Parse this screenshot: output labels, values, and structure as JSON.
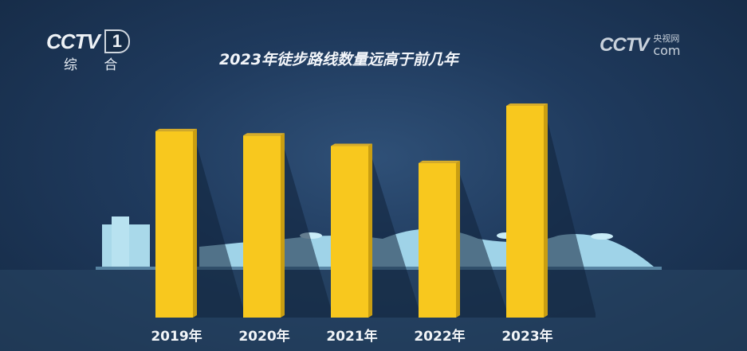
{
  "logo_left": {
    "brand": "CCTV",
    "channel_number": "1",
    "channel_name": "综 合"
  },
  "logo_right": {
    "brand": "CCTV",
    "site_cn": "央视网",
    "site_suffix": "com"
  },
  "chart_data": {
    "type": "bar",
    "title": "2023年徒步路线数量远高于前几年",
    "categories": [
      "2019年",
      "2020年",
      "2021年",
      "2022年",
      "2023年"
    ],
    "values": [
      88,
      86,
      81,
      73,
      100
    ],
    "value_note_scale": "relative",
    "ylim": [
      0,
      100
    ],
    "xlabel": "",
    "ylabel": "",
    "grid": false,
    "bar_color": "#f8c81e",
    "background_color": "#1f3a5d"
  }
}
